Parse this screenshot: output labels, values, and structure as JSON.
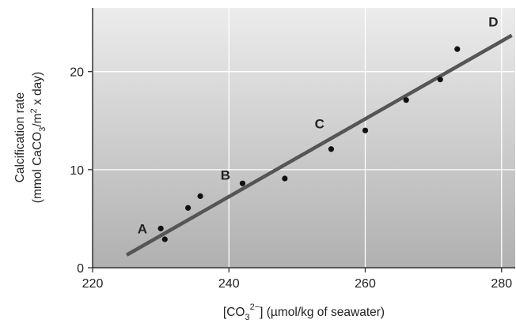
{
  "chart_data": {
    "type": "scatter",
    "xlabel": {
      "prefix": "[CO",
      "sub": "3",
      "sup": "2−",
      "suffix": "] (µmol/kg of seawater)"
    },
    "ylabel": {
      "line1": "Calcification rate",
      "line2_prefix": "(mmol CaCO",
      "line2_sub": "3",
      "line2_mid": "/m",
      "line2_sup": "2",
      "line2_suffix": " x day)"
    },
    "xlim": [
      220,
      282
    ],
    "ylim": [
      0,
      26.5
    ],
    "xticks": [
      220,
      240,
      260,
      280
    ],
    "yticks": [
      0,
      10,
      20
    ],
    "points": [
      {
        "x": 230.0,
        "y": 4.0
      },
      {
        "x": 230.6,
        "y": 2.9
      },
      {
        "x": 234.0,
        "y": 6.1
      },
      {
        "x": 235.8,
        "y": 7.3
      },
      {
        "x": 242.0,
        "y": 8.6
      },
      {
        "x": 248.2,
        "y": 9.1
      },
      {
        "x": 255.0,
        "y": 12.1
      },
      {
        "x": 260.0,
        "y": 14.0
      },
      {
        "x": 266.0,
        "y": 17.1
      },
      {
        "x": 271.0,
        "y": 19.2
      },
      {
        "x": 273.5,
        "y": 22.3
      }
    ],
    "trendline": {
      "x": [
        225,
        281.5
      ],
      "y": [
        1.3,
        23.7
      ]
    },
    "annotations": [
      {
        "text": "A",
        "x": 227.3,
        "y": 3.5
      },
      {
        "text": "B",
        "x": 239.5,
        "y": 9.0
      },
      {
        "text": "C",
        "x": 253.3,
        "y": 14.2
      },
      {
        "text": "D",
        "x": 278.8,
        "y": 24.6
      }
    ],
    "grid": true,
    "background_top": "#ececec",
    "background_bottom": "#b0b0b0",
    "grid_color": "#ffffff",
    "line_color": "#555555",
    "point_color": "#111111"
  }
}
